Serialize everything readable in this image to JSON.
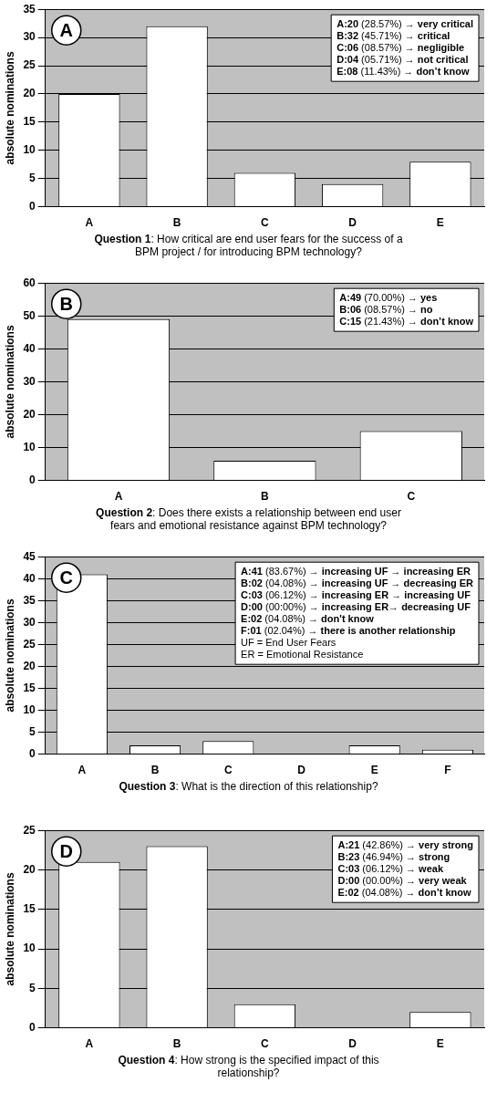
{
  "chart_data": [
    {
      "type": "bar",
      "title": "Question 1: How critical are end user fears for the success of a BPM project / for introducing BPM technology?",
      "ylabel": "absolute nominations",
      "categories": [
        "A",
        "B",
        "C",
        "D",
        "E"
      ],
      "values": [
        20,
        32,
        6,
        4,
        8
      ],
      "color": "#ffffff",
      "ylim": [
        0,
        35
      ],
      "yticks": [
        0,
        5,
        10,
        15,
        20,
        25,
        30,
        35
      ],
      "grid": "y",
      "annotations": [
        "A",
        "A:20 (28.57%) → very critical",
        "B:32 (45.71%) → critical",
        "C:06 (08.57%) → negligible",
        "D:04 (05.71%) → not critical",
        "E:08 (11.43%) → don’t know"
      ]
    },
    {
      "type": "bar",
      "title": "Question 2: Does there exists a relationship between end user fears and emotional resistance against BPM technology?",
      "ylabel": "absolute nominations",
      "categories": [
        "A",
        "B",
        "C"
      ],
      "values": [
        49,
        6,
        15
      ],
      "color": "#ffffff",
      "ylim": [
        0,
        60
      ],
      "yticks": [
        0,
        10,
        20,
        30,
        40,
        50,
        60
      ],
      "grid": "y",
      "annotations": [
        "B",
        "A:49 (70.00%) → yes",
        "B:06 (08.57%) → no",
        "C:15 (21.43%) → don’t know"
      ]
    },
    {
      "type": "bar",
      "title": "Question 3: What is the direction of this relationship?",
      "ylabel": "absolute nominations",
      "categories": [
        "A",
        "B",
        "C",
        "D",
        "E",
        "F"
      ],
      "values": [
        41,
        2,
        3,
        0,
        2,
        1
      ],
      "color": "#ffffff",
      "ylim": [
        0,
        45
      ],
      "yticks": [
        0,
        5,
        10,
        15,
        20,
        25,
        30,
        35,
        40,
        45
      ],
      "grid": "y",
      "annotations": [
        "C",
        "A:41 (83.67%) → increasing UF → increasing ER",
        "B:02 (04.08%) → increasing UF → decreasing ER",
        "C:03 (06.12%) → increasing ER → increasing UF",
        "D:00 (00:00%) → increasing ER→ decreasing UF",
        "E:02 (04.08%) → don't know",
        "F:01 (02.04%) → there is another relationship",
        "UF = End User Fears",
        "ER = Emotional Resistance"
      ]
    },
    {
      "type": "bar",
      "title": "Question 4: How strong is the specified impact of this relationship?",
      "ylabel": "absolute nominations",
      "categories": [
        "A",
        "B",
        "C",
        "D",
        "E"
      ],
      "values": [
        21,
        23,
        3,
        0,
        2
      ],
      "color": "#ffffff",
      "ylim": [
        0,
        25
      ],
      "yticks": [
        0,
        5,
        10,
        15,
        20,
        25
      ],
      "grid": "y",
      "annotations": [
        "D",
        "A:21 (42.86%) → very strong",
        "B:23 (46.94%) → strong",
        "C:03 (06.12%) → weak",
        "D:00 (00.00%) → very weak",
        "E:02 (04.08%) → don’t know"
      ]
    }
  ]
}
